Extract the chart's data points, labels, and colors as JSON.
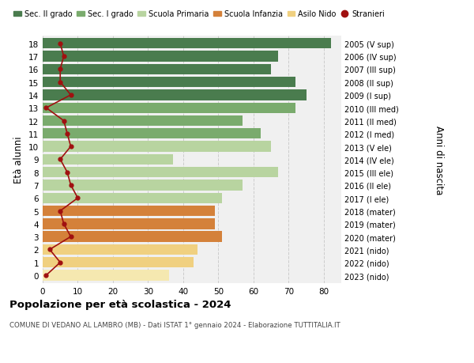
{
  "ages": [
    18,
    17,
    16,
    15,
    14,
    13,
    12,
    11,
    10,
    9,
    8,
    7,
    6,
    5,
    4,
    3,
    2,
    1,
    0
  ],
  "bar_values": [
    82,
    67,
    65,
    72,
    75,
    72,
    57,
    62,
    65,
    37,
    67,
    57,
    51,
    49,
    49,
    51,
    44,
    43,
    36
  ],
  "right_labels": [
    "2005 (V sup)",
    "2006 (IV sup)",
    "2007 (III sup)",
    "2008 (II sup)",
    "2009 (I sup)",
    "2010 (III med)",
    "2011 (II med)",
    "2012 (I med)",
    "2013 (V ele)",
    "2014 (IV ele)",
    "2015 (III ele)",
    "2016 (II ele)",
    "2017 (I ele)",
    "2018 (mater)",
    "2019 (mater)",
    "2020 (mater)",
    "2021 (nido)",
    "2022 (nido)",
    "2023 (nido)"
  ],
  "bar_colors": [
    "#4a7c4e",
    "#4a7c4e",
    "#4a7c4e",
    "#4a7c4e",
    "#4a7c4e",
    "#7aab6d",
    "#7aab6d",
    "#7aab6d",
    "#b8d4a0",
    "#b8d4a0",
    "#b8d4a0",
    "#b8d4a0",
    "#b8d4a0",
    "#d4813a",
    "#d4813a",
    "#d4813a",
    "#f0d080",
    "#f0d080",
    "#f5e8b0"
  ],
  "stranieri_values": [
    5,
    6,
    5,
    5,
    8,
    1,
    6,
    7,
    8,
    5,
    7,
    8,
    10,
    5,
    6,
    8,
    2,
    5,
    1
  ],
  "stranieri_color": "#a01010",
  "legend_items": [
    {
      "label": "Sec. II grado",
      "color": "#4a7c4e"
    },
    {
      "label": "Sec. I grado",
      "color": "#7aab6d"
    },
    {
      "label": "Scuola Primaria",
      "color": "#b8d4a0"
    },
    {
      "label": "Scuola Infanzia",
      "color": "#d4813a"
    },
    {
      "label": "Asilo Nido",
      "color": "#f0d080"
    },
    {
      "label": "Stranieri",
      "color": "#a01010"
    }
  ],
  "ylabel_left": "Età alunni",
  "ylabel_right": "Anni di nascita",
  "title": "Popolazione per età scolastica - 2024",
  "subtitle": "COMUNE DI VEDANO AL LAMBRO (MB) - Dati ISTAT 1° gennaio 2024 - Elaborazione TUTTITALIA.IT",
  "xlim": [
    0,
    85
  ],
  "xticks": [
    0,
    10,
    20,
    30,
    40,
    50,
    60,
    70,
    80
  ],
  "bg_color": "#f0f0f0",
  "grid_color": "#cccccc",
  "bar_height": 0.82
}
